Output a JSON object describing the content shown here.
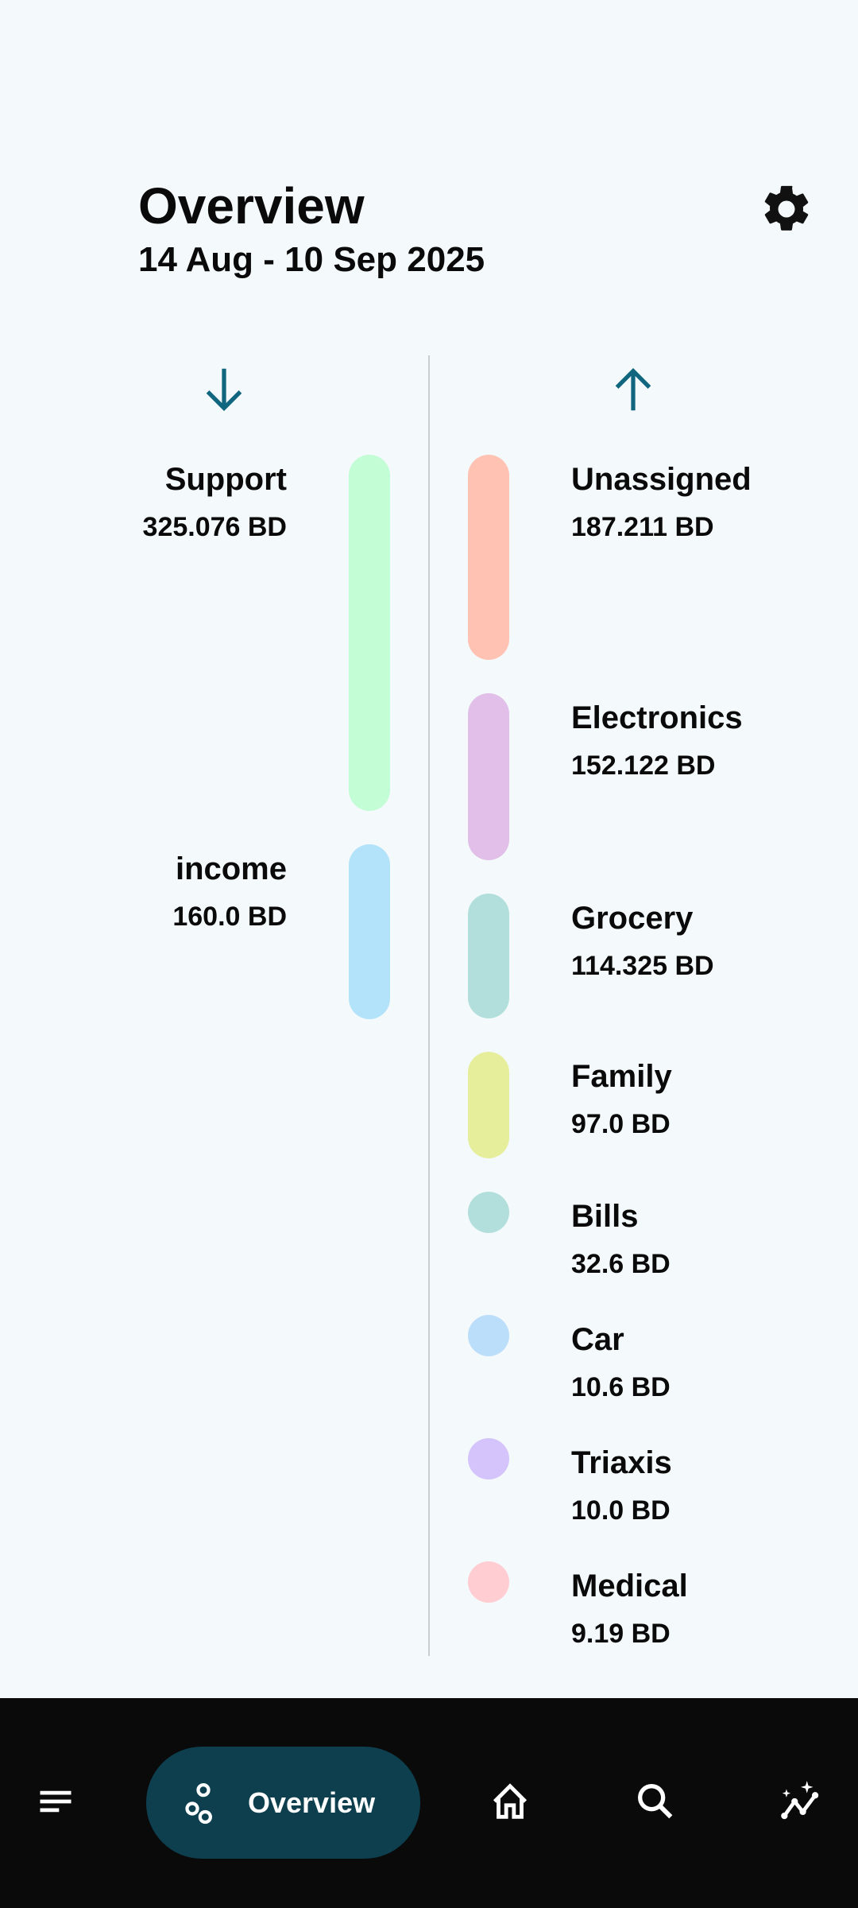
{
  "header": {
    "title": "Overview",
    "date_range": "14 Aug - 10 Sep 2025",
    "settings_icon": "gear-icon"
  },
  "accent": "#10667f",
  "income": {
    "icon": "arrow-down-icon",
    "items": [
      {
        "name": "Support",
        "amount": "325.076 BD",
        "value": 325.076,
        "color": "#c2fdd6"
      },
      {
        "name": "income",
        "amount": "160.0 BD",
        "value": 160.0,
        "color": "#b3e3fa"
      }
    ]
  },
  "expenses": {
    "icon": "arrow-up-icon",
    "items": [
      {
        "name": "Unassigned",
        "amount": "187.211 BD",
        "value": 187.211,
        "color": "#ffc2b3"
      },
      {
        "name": "Electronics",
        "amount": "152.122 BD",
        "value": 152.122,
        "color": "#e1bfe8"
      },
      {
        "name": "Grocery",
        "amount": "114.325 BD",
        "value": 114.325,
        "color": "#b2dfdb"
      },
      {
        "name": "Family",
        "amount": "97.0 BD",
        "value": 97.0,
        "color": "#e6ee9c"
      },
      {
        "name": "Bills",
        "amount": "32.6 BD",
        "value": 32.6,
        "color": "#b2dfdb"
      },
      {
        "name": "Car",
        "amount": "10.6 BD",
        "value": 10.6,
        "color": "#bbdefb"
      },
      {
        "name": "Triaxis",
        "amount": "10.0 BD",
        "value": 10.0,
        "color": "#d5c4fb"
      },
      {
        "name": "Medical",
        "amount": "9.19 BD",
        "value": 9.19,
        "color": "#ffcdd2"
      }
    ]
  },
  "nav": {
    "active_label": "Overview",
    "items": [
      "menu-icon",
      "overview-icon",
      "home-icon",
      "search-icon",
      "insights-icon"
    ]
  }
}
